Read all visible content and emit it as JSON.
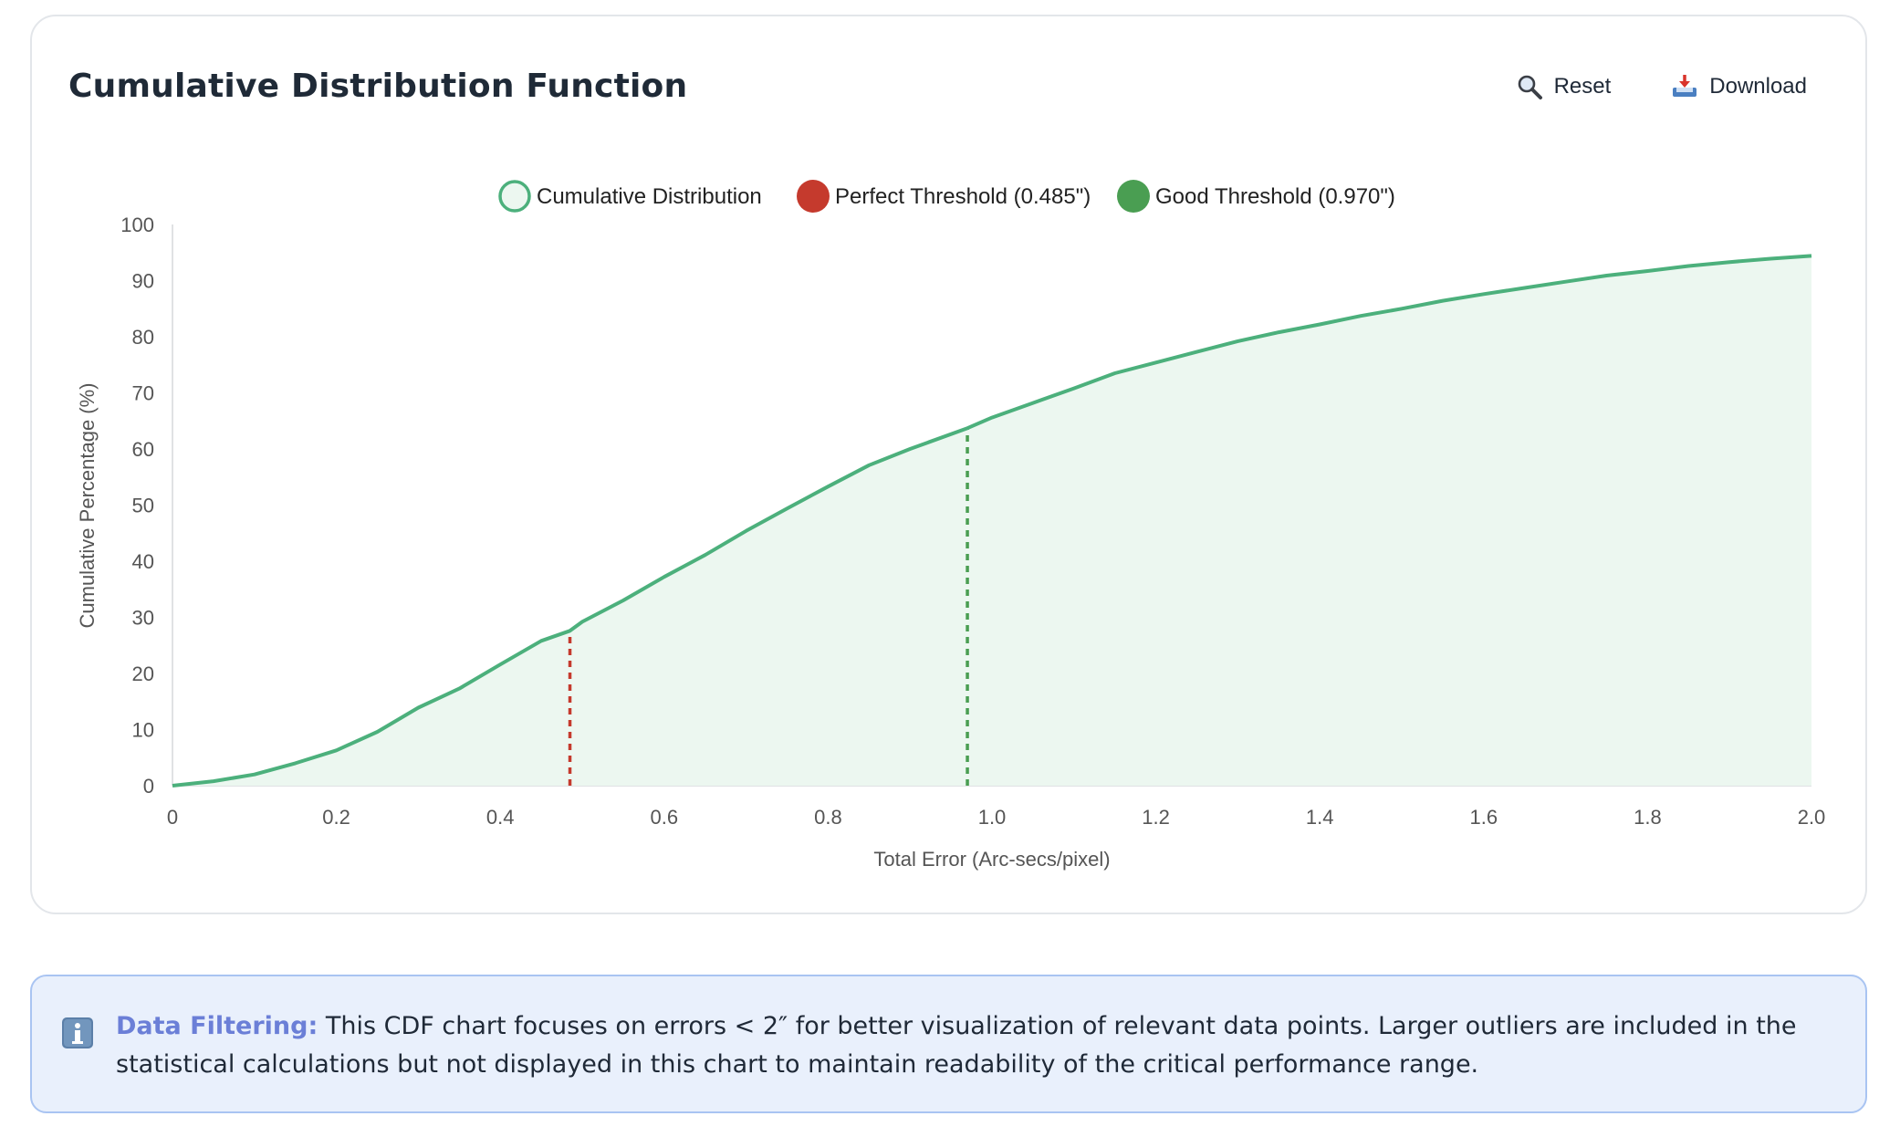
{
  "card": {
    "title": "Cumulative Distribution Function",
    "reset_label": "Reset",
    "download_label": "Download",
    "reset_icon": "magnifier-icon",
    "download_icon": "download-tray-icon"
  },
  "colors": {
    "cdf_line": "#4cb07c",
    "cdf_fill": "#ecf7f0",
    "perfect": "#c53a2d",
    "good": "#4a9e52",
    "info_border": "#a9c4f2",
    "info_bg": "#e9f0fc",
    "info_label": "#6b7fd7"
  },
  "chart_data": {
    "type": "area",
    "title": "",
    "xlabel": "Total Error (Arc-secs/pixel)",
    "ylabel": "Cumulative Percentage (%)",
    "xlim": [
      0,
      2.0
    ],
    "ylim": [
      0,
      100
    ],
    "x_ticks": [
      "0",
      "0.2",
      "0.4",
      "0.6",
      "0.8",
      "1.0",
      "1.2",
      "1.4",
      "1.6",
      "1.8",
      "2.0"
    ],
    "y_ticks": [
      "0",
      "10",
      "20",
      "30",
      "40",
      "50",
      "60",
      "70",
      "80",
      "90",
      "100"
    ],
    "legend_position": "top-center",
    "grid": false,
    "series": [
      {
        "name": "Cumulative Distribution",
        "x": [
          0,
          0.05,
          0.1,
          0.15,
          0.2,
          0.25,
          0.3,
          0.35,
          0.4,
          0.45,
          0.485,
          0.5,
          0.55,
          0.6,
          0.65,
          0.7,
          0.75,
          0.8,
          0.85,
          0.9,
          0.97,
          1.0,
          1.05,
          1.1,
          1.15,
          1.2,
          1.25,
          1.3,
          1.35,
          1.4,
          1.45,
          1.5,
          1.55,
          1.6,
          1.65,
          1.7,
          1.75,
          1.8,
          1.85,
          1.9,
          1.95,
          2.0
        ],
        "y": [
          0,
          0.8,
          2.0,
          4.0,
          6.3,
          9.6,
          13.9,
          17.3,
          21.6,
          25.8,
          27.6,
          29.2,
          33.0,
          37.2,
          41.1,
          45.4,
          49.4,
          53.3,
          57.1,
          60.0,
          63.7,
          65.6,
          68.2,
          70.8,
          73.5,
          75.4,
          77.3,
          79.2,
          80.8,
          82.2,
          83.7,
          85.0,
          86.4,
          87.6,
          88.7,
          89.8,
          90.9,
          91.7,
          92.6,
          93.3,
          93.9,
          94.4
        ]
      },
      {
        "name": "Perfect Threshold (0.485\")",
        "x_value": 0.485,
        "y_top": 27.6
      },
      {
        "name": "Good Threshold (0.970\")",
        "x_value": 0.97,
        "y_top": 63.7
      }
    ]
  },
  "info": {
    "label": "Data Filtering:",
    "text": "This CDF chart focuses on errors < 2″ for better visualization of relevant data points. Larger outliers are included in the statistical calculations but not displayed in this chart to maintain readability of the critical performance range.",
    "icon": "info-icon"
  }
}
